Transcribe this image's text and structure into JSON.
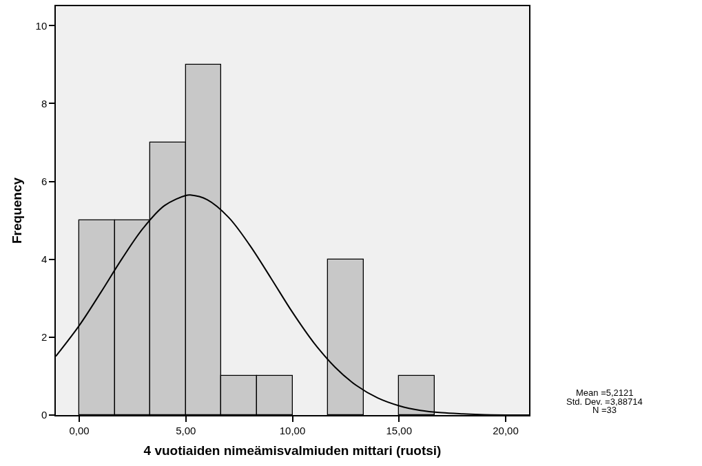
{
  "chart_data": {
    "type": "histogram",
    "xlabel": "4 vuotiaiden nimeämisvalmiuden mittari (ruotsi)",
    "ylabel": "Frequency",
    "bins": [
      0,
      1.67,
      3.33,
      5,
      6.67,
      8.33,
      10,
      11.67,
      13.33,
      15,
      16.67
    ],
    "values": [
      5,
      5,
      7,
      9,
      1,
      1,
      0,
      4,
      0,
      1
    ],
    "color": "#c8c8c8",
    "series": [
      {
        "type": "line",
        "color": "#000000",
        "x": [
          -1.1,
          0,
          1,
          2,
          3,
          4,
          5,
          5.21,
          6,
          7,
          8,
          9,
          10,
          11,
          12,
          13,
          14,
          15,
          16,
          17,
          18,
          19,
          20,
          21.1
        ],
        "values": [
          1.51,
          2.3,
          3.14,
          4.01,
          4.8,
          5.38,
          5.64,
          5.65,
          5.53,
          5.08,
          4.36,
          3.51,
          2.64,
          1.86,
          1.23,
          0.76,
          0.44,
          0.24,
          0.12,
          0.06,
          0.03,
          0.01,
          0,
          0
        ]
      }
    ],
    "xlim": [
      -1.1,
      21.1
    ],
    "xticks": [
      {
        "value": 0,
        "label": "0,00"
      },
      {
        "value": 5,
        "label": "5,00"
      },
      {
        "value": 10,
        "label": "10,00"
      },
      {
        "value": 15,
        "label": "15,00"
      },
      {
        "value": 20,
        "label": "20,00"
      }
    ],
    "ylim": [
      0,
      10.5
    ],
    "yticks": [
      0,
      2,
      4,
      6,
      8,
      10
    ],
    "grid": false,
    "annotations": [
      "Mean =5,2121",
      "Std. Dev. =3,88714",
      "N =33"
    ]
  }
}
